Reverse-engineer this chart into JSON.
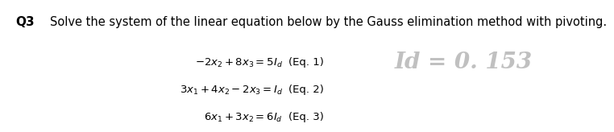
{
  "title_q": "Q3",
  "title_text": "Solve the system of the linear equation below by the Gauss elimination method with pivoting.",
  "eq1_math": "$-2x_2 + 8x_3 = 5I_d$",
  "eq2_math": "$3x_1 + 4x_2 - 2x_3 = I_d$",
  "eq3_math": "$6x_1 + 3x_2 = 6I_d$",
  "eq1_label": "(Eq. 1)",
  "eq2_label": "(Eq. 2)",
  "eq3_label": "(Eq. 3)",
  "id_text": "Id = 0. 153",
  "bg_color": "#ffffff",
  "text_color": "#000000",
  "id_color": "#c0c0c0",
  "fontsize_q": 11,
  "fontsize_title": 10.5,
  "fontsize_eq": 9.5,
  "fontsize_id": 20
}
